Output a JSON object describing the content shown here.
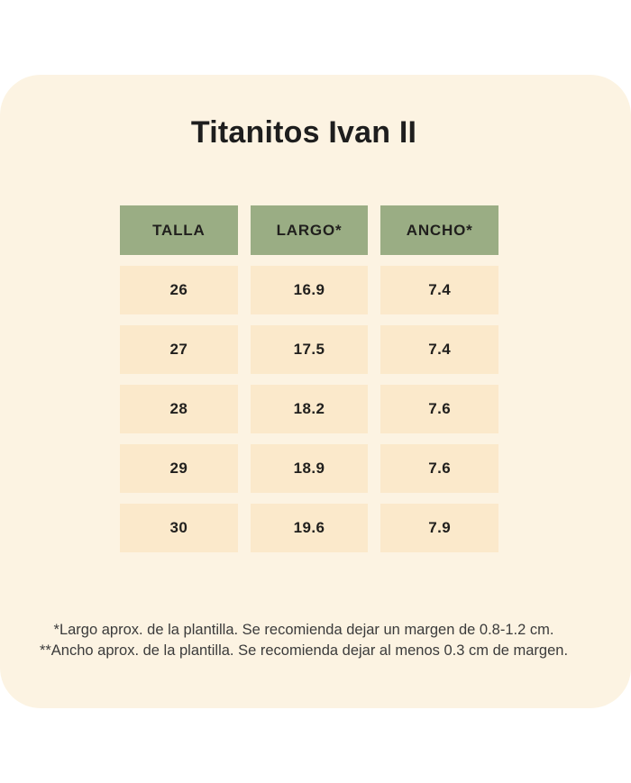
{
  "theme": {
    "page_background": "#ffffff",
    "card_background": "#fcf3e2",
    "cell_background": "#fbe9cb",
    "header_background": "#9aad84",
    "title_color": "#1e1e1e",
    "cell_text_color": "#201f1d",
    "footnote_color": "#3b3b3b"
  },
  "title": "Titanitos Ivan II",
  "table": {
    "columns": [
      "TALLA",
      "LARGO*",
      "ANCHO*"
    ],
    "rows": [
      [
        "26",
        "16.9",
        "7.4"
      ],
      [
        "27",
        "17.5",
        "7.4"
      ],
      [
        "28",
        "18.2",
        "7.6"
      ],
      [
        "29",
        "18.9",
        "7.6"
      ],
      [
        "30",
        "19.6",
        "7.9"
      ]
    ]
  },
  "footnotes": [
    "*Largo aprox. de la plantilla. Se recomienda dejar un margen de 0.8-1.2 cm.",
    "**Ancho aprox. de la plantilla. Se recomienda dejar al menos 0.3 cm de margen."
  ]
}
